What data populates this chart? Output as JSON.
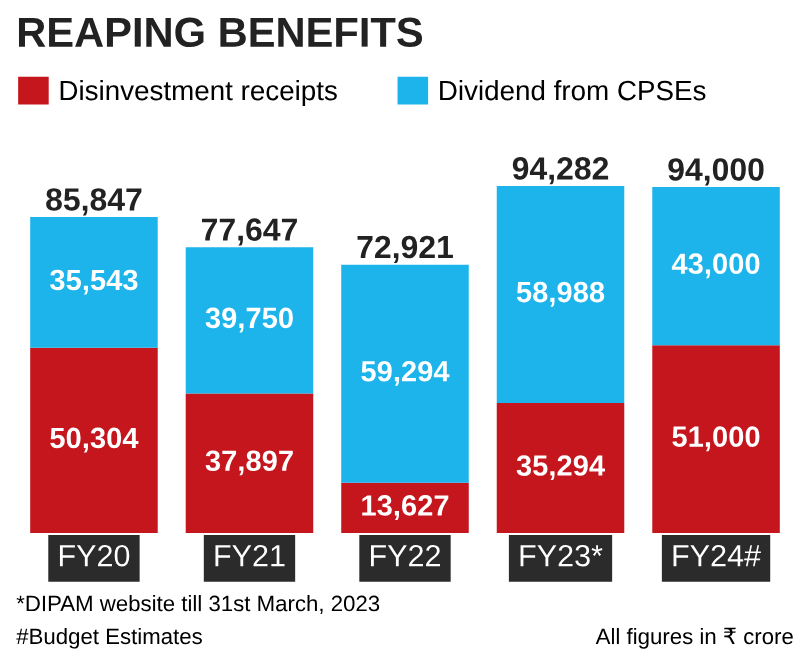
{
  "chart_data": {
    "type": "bar",
    "title": "REAPING BENEFITS",
    "categories": [
      "FY20",
      "FY21",
      "FY22",
      "FY23*",
      "FY24#"
    ],
    "stacked": true,
    "legend": "top",
    "grid": false,
    "series": [
      {
        "name": "Disinvestment receipts",
        "color": "#c4161c",
        "values": [
          50304,
          37897,
          13627,
          35294,
          51000
        ],
        "value_labels": [
          "50,304",
          "37,897",
          "13,627",
          "35,294",
          "51,000"
        ]
      },
      {
        "name": "Dividend from CPSEs",
        "color": "#1cb4ea",
        "values": [
          35543,
          39750,
          59294,
          58988,
          43000
        ],
        "value_labels": [
          "35,543",
          "39,750",
          "59,294",
          "58,988",
          "43,000"
        ]
      }
    ],
    "totals": [
      "85,847",
      "77,647",
      "72,921",
      "94,282",
      "94,000"
    ],
    "annotations": [
      "*DIPAM website till 31st March, 2023",
      "#Budget Estimates",
      "All figures in ₹ crore"
    ]
  }
}
